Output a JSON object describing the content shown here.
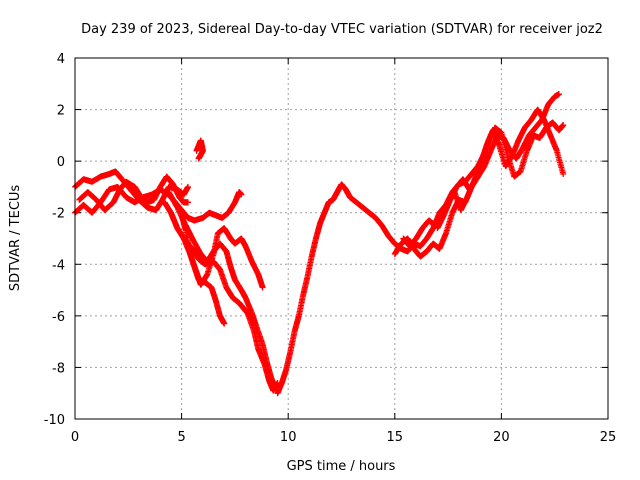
{
  "chart_data": {
    "type": "scatter",
    "title": "Day 239 of 2023, Sidereal Day-to-day VTEC variation (SDTVAR) for receiver joz2",
    "xlabel": "GPS time / hours",
    "ylabel": "SDTVAR / TECUs",
    "xlim": [
      0,
      25
    ],
    "ylim": [
      -10,
      4
    ],
    "xticks": [
      0,
      5,
      10,
      15,
      20,
      25
    ],
    "yticks": [
      -10,
      -8,
      -6,
      -4,
      -2,
      0,
      2,
      4
    ],
    "grid": true,
    "marker": "+",
    "series": [
      {
        "color": "#ff0000",
        "tracks": [
          [
            [
              0.0,
              -1.0
            ],
            [
              0.4,
              -0.7
            ],
            [
              0.8,
              -0.8
            ],
            [
              1.2,
              -0.6
            ],
            [
              1.6,
              -0.5
            ],
            [
              1.9,
              -0.4
            ],
            [
              2.2,
              -0.7
            ],
            [
              2.6,
              -1.1
            ],
            [
              3.0,
              -1.5
            ],
            [
              3.4,
              -1.8
            ],
            [
              3.8,
              -1.9
            ],
            [
              4.1,
              -1.5
            ],
            [
              4.4,
              -1.0
            ],
            [
              4.8,
              -1.1
            ],
            [
              5.1,
              -1.3
            ],
            [
              5.3,
              -1.0
            ]
          ],
          [
            [
              0.0,
              -2.0
            ],
            [
              0.4,
              -1.7
            ],
            [
              0.8,
              -2.0
            ],
            [
              1.2,
              -1.6
            ],
            [
              1.6,
              -1.1
            ],
            [
              2.0,
              -1.0
            ],
            [
              2.4,
              -1.4
            ],
            [
              2.8,
              -1.6
            ],
            [
              3.2,
              -1.4
            ],
            [
              3.6,
              -1.3
            ],
            [
              4.0,
              -1.1
            ],
            [
              4.4,
              -1.3
            ],
            [
              4.7,
              -1.6
            ],
            [
              5.0,
              -1.9
            ],
            [
              5.3,
              -2.2
            ],
            [
              5.6,
              -2.3
            ],
            [
              6.0,
              -2.2
            ],
            [
              6.3,
              -2.0
            ],
            [
              6.6,
              -2.1
            ],
            [
              6.9,
              -2.2
            ],
            [
              7.2,
              -2.0
            ],
            [
              7.5,
              -1.6
            ],
            [
              7.7,
              -1.2
            ],
            [
              7.8,
              -1.3
            ]
          ],
          [
            [
              0.2,
              -1.5
            ],
            [
              0.6,
              -1.2
            ],
            [
              1.0,
              -1.5
            ],
            [
              1.4,
              -1.9
            ],
            [
              1.8,
              -1.6
            ],
            [
              2.1,
              -1.1
            ],
            [
              2.4,
              -0.8
            ],
            [
              2.8,
              -1.0
            ],
            [
              3.1,
              -1.4
            ],
            [
              3.4,
              -1.6
            ],
            [
              3.7,
              -1.5
            ],
            [
              4.0,
              -1.0
            ],
            [
              4.3,
              -0.6
            ],
            [
              4.6,
              -0.9
            ],
            [
              4.9,
              -1.4
            ],
            [
              5.1,
              -1.6
            ],
            [
              5.3,
              -1.6
            ]
          ],
          [
            [
              4.2,
              -1.6
            ],
            [
              4.5,
              -2.0
            ],
            [
              4.8,
              -2.6
            ],
            [
              5.2,
              -3.1
            ],
            [
              5.5,
              -3.4
            ],
            [
              5.8,
              -3.8
            ],
            [
              6.1,
              -4.0
            ],
            [
              6.5,
              -3.9
            ],
            [
              6.8,
              -4.2
            ],
            [
              7.1,
              -4.9
            ],
            [
              7.4,
              -5.3
            ],
            [
              7.7,
              -5.5
            ],
            [
              7.9,
              -5.7
            ],
            [
              8.1,
              -5.9
            ],
            [
              8.4,
              -6.6
            ],
            [
              8.6,
              -7.3
            ],
            [
              8.9,
              -7.9
            ],
            [
              9.1,
              -8.5
            ],
            [
              9.3,
              -8.9
            ],
            [
              9.5,
              -8.6
            ]
          ],
          [
            [
              4.4,
              -1.2
            ],
            [
              4.8,
              -1.8
            ],
            [
              5.2,
              -2.5
            ],
            [
              5.5,
              -3.0
            ],
            [
              5.9,
              -3.6
            ],
            [
              6.2,
              -3.9
            ],
            [
              6.5,
              -3.5
            ],
            [
              6.8,
              -3.2
            ],
            [
              7.1,
              -3.5
            ],
            [
              7.3,
              -4.1
            ],
            [
              7.5,
              -4.6
            ],
            [
              7.8,
              -5.0
            ],
            [
              8.0,
              -5.3
            ],
            [
              8.3,
              -5.9
            ],
            [
              8.5,
              -6.4
            ],
            [
              8.8,
              -7.1
            ],
            [
              9.0,
              -7.8
            ],
            [
              9.2,
              -8.4
            ],
            [
              9.4,
              -8.8
            ]
          ],
          [
            [
              4.5,
              -2.0
            ],
            [
              4.8,
              -2.6
            ],
            [
              5.1,
              -3.0
            ],
            [
              5.4,
              -3.6
            ],
            [
              5.7,
              -4.3
            ],
            [
              5.9,
              -4.8
            ],
            [
              6.2,
              -4.4
            ],
            [
              6.5,
              -3.6
            ],
            [
              6.7,
              -2.8
            ],
            [
              7.0,
              -2.6
            ],
            [
              7.3,
              -3.0
            ],
            [
              7.5,
              -3.2
            ],
            [
              7.8,
              -3.0
            ],
            [
              8.0,
              -3.3
            ],
            [
              8.3,
              -3.9
            ],
            [
              8.6,
              -4.4
            ],
            [
              8.8,
              -4.9
            ]
          ],
          [
            [
              5.0,
              -2.1
            ],
            [
              5.2,
              -2.7
            ],
            [
              5.4,
              -3.6
            ],
            [
              5.6,
              -4.1
            ],
            [
              5.8,
              -4.6
            ],
            [
              6.1,
              -4.7
            ],
            [
              6.4,
              -4.9
            ],
            [
              6.6,
              -5.4
            ],
            [
              6.8,
              -6.0
            ],
            [
              7.0,
              -6.3
            ]
          ],
          [
            [
              5.7,
              0.4
            ],
            [
              5.9,
              0.8
            ],
            [
              6.0,
              0.4
            ],
            [
              5.8,
              0.1
            ]
          ],
          [
            [
              9.5,
              -9.0
            ],
            [
              9.7,
              -8.6
            ],
            [
              9.9,
              -8.1
            ],
            [
              10.1,
              -7.4
            ],
            [
              10.3,
              -6.6
            ],
            [
              10.5,
              -6.0
            ],
            [
              10.7,
              -5.2
            ],
            [
              10.9,
              -4.5
            ],
            [
              11.1,
              -3.7
            ],
            [
              11.3,
              -3.0
            ],
            [
              11.5,
              -2.4
            ],
            [
              11.7,
              -2.0
            ],
            [
              11.9,
              -1.6
            ],
            [
              12.1,
              -1.5
            ],
            [
              12.3,
              -1.2
            ],
            [
              12.5,
              -0.9
            ],
            [
              12.7,
              -1.1
            ],
            [
              12.9,
              -1.4
            ],
            [
              13.2,
              -1.6
            ],
            [
              13.5,
              -1.8
            ],
            [
              13.8,
              -2.0
            ],
            [
              14.1,
              -2.2
            ],
            [
              14.4,
              -2.5
            ],
            [
              14.7,
              -2.9
            ],
            [
              15.0,
              -3.2
            ],
            [
              15.3,
              -3.4
            ],
            [
              15.6,
              -3.5
            ],
            [
              15.9,
              -3.2
            ],
            [
              16.2,
              -3.3
            ],
            [
              16.5,
              -3.0
            ],
            [
              16.8,
              -2.6
            ],
            [
              17.1,
              -2.0
            ],
            [
              17.4,
              -1.7
            ],
            [
              17.7,
              -1.2
            ],
            [
              18.0,
              -0.9
            ],
            [
              18.3,
              -0.8
            ],
            [
              18.6,
              -0.5
            ],
            [
              18.9,
              -0.2
            ],
            [
              19.2,
              0.3
            ],
            [
              19.5,
              1.0
            ],
            [
              19.8,
              1.2
            ]
          ],
          [
            [
              15.0,
              -3.6
            ],
            [
              15.3,
              -3.2
            ],
            [
              15.6,
              -3.0
            ],
            [
              15.9,
              -3.4
            ],
            [
              16.2,
              -3.7
            ],
            [
              16.5,
              -3.5
            ],
            [
              16.8,
              -3.2
            ],
            [
              17.1,
              -3.4
            ],
            [
              17.4,
              -2.8
            ],
            [
              17.7,
              -2.0
            ],
            [
              18.0,
              -1.5
            ],
            [
              18.3,
              -1.6
            ],
            [
              18.6,
              -1.0
            ],
            [
              18.9,
              -0.6
            ],
            [
              19.2,
              -0.2
            ],
            [
              19.5,
              0.4
            ],
            [
              19.8,
              1.0
            ],
            [
              20.1,
              0.9
            ],
            [
              20.4,
              0.4
            ],
            [
              20.7,
              0.1
            ],
            [
              21.0,
              0.5
            ],
            [
              21.3,
              1.0
            ],
            [
              21.6,
              1.3
            ],
            [
              21.9,
              1.6
            ],
            [
              22.2,
              2.2
            ],
            [
              22.5,
              2.5
            ],
            [
              22.7,
              2.6
            ]
          ],
          [
            [
              15.4,
              -3.0
            ],
            [
              15.7,
              -3.3
            ],
            [
              16.0,
              -3.0
            ],
            [
              16.3,
              -2.6
            ],
            [
              16.6,
              -2.3
            ],
            [
              16.9,
              -2.5
            ],
            [
              17.2,
              -2.0
            ],
            [
              17.5,
              -1.6
            ],
            [
              17.8,
              -1.2
            ],
            [
              18.1,
              -1.9
            ],
            [
              18.4,
              -1.4
            ],
            [
              18.7,
              -0.8
            ],
            [
              19.0,
              -0.2
            ],
            [
              19.3,
              0.6
            ],
            [
              19.6,
              1.2
            ],
            [
              19.9,
              0.6
            ],
            [
              20.2,
              -0.2
            ],
            [
              20.5,
              0.2
            ],
            [
              20.8,
              0.8
            ],
            [
              21.1,
              1.3
            ],
            [
              21.4,
              1.6
            ],
            [
              21.7,
              2.0
            ],
            [
              22.0,
              1.6
            ],
            [
              22.3,
              1.0
            ],
            [
              22.6,
              0.4
            ],
            [
              22.9,
              -0.5
            ]
          ],
          [
            [
              17.0,
              -2.6
            ],
            [
              17.3,
              -2.1
            ],
            [
              17.6,
              -1.5
            ],
            [
              17.9,
              -1.0
            ],
            [
              18.2,
              -0.7
            ],
            [
              18.5,
              -1.1
            ],
            [
              18.8,
              -0.7
            ],
            [
              19.1,
              0.1
            ],
            [
              19.4,
              0.8
            ],
            [
              19.7,
              1.3
            ],
            [
              20.0,
              1.1
            ],
            [
              20.3,
              0.2
            ],
            [
              20.6,
              -0.6
            ],
            [
              20.9,
              -0.4
            ],
            [
              21.2,
              0.4
            ],
            [
              21.5,
              1.0
            ],
            [
              21.8,
              0.9
            ],
            [
              22.1,
              1.3
            ],
            [
              22.4,
              1.5
            ],
            [
              22.7,
              1.2
            ],
            [
              22.9,
              1.4
            ]
          ]
        ]
      }
    ]
  }
}
